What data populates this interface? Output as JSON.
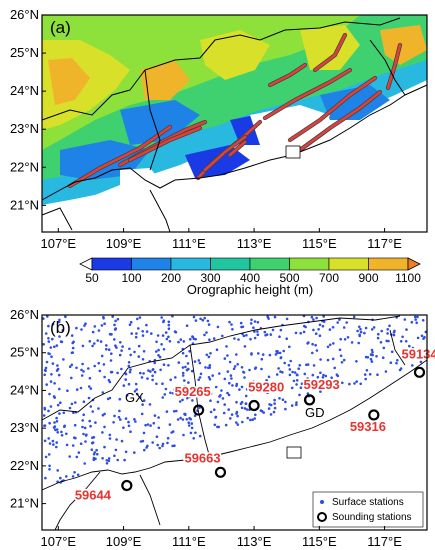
{
  "panel_a": {
    "label": "(a)",
    "x_ticks": [
      "107°E",
      "109°E",
      "111°E",
      "113°E",
      "115°E",
      "117°E"
    ],
    "y_ticks": [
      "26°N",
      "25°N",
      "24°N",
      "23°N",
      "22°N",
      "21°N"
    ],
    "colorbar": {
      "levels": [
        "50",
        "100",
        "200",
        "300",
        "400",
        "500",
        "700",
        "900",
        "1100"
      ],
      "colors": [
        "#ffffff",
        "#1a3ae6",
        "#1e82e6",
        "#28b8e0",
        "#1fc6a0",
        "#3fd070",
        "#8ee03a",
        "#d8e02a",
        "#f0b42a",
        "#f0801e"
      ],
      "title": "Orographic height (m)"
    },
    "ridge_color": "#e0403a"
  },
  "panel_b": {
    "label": "(b)",
    "x_ticks": [
      "107°E",
      "109°E",
      "111°E",
      "113°E",
      "115°E",
      "117°E"
    ],
    "y_ticks": [
      "26°N",
      "25°N",
      "24°N",
      "23°N",
      "22°N",
      "21°N"
    ],
    "provinces": [
      "GX",
      "GD"
    ],
    "sounding_stations": [
      {
        "id": "59265",
        "lon": 111.3,
        "lat": 23.48
      },
      {
        "id": "59280",
        "lon": 113.0,
        "lat": 23.6
      },
      {
        "id": "59293",
        "lon": 114.7,
        "lat": 23.75
      },
      {
        "id": "59134",
        "lon": 118.07,
        "lat": 24.48
      },
      {
        "id": "59316",
        "lon": 116.67,
        "lat": 23.35
      },
      {
        "id": "59663",
        "lon": 111.97,
        "lat": 21.83
      },
      {
        "id": "59644",
        "lon": 109.1,
        "lat": 21.48
      }
    ],
    "legend": {
      "surface": "Surface stations",
      "sounding": "Sounding stations"
    },
    "surface_color": "#2d4de6",
    "station_label_color": "#e8332f"
  }
}
